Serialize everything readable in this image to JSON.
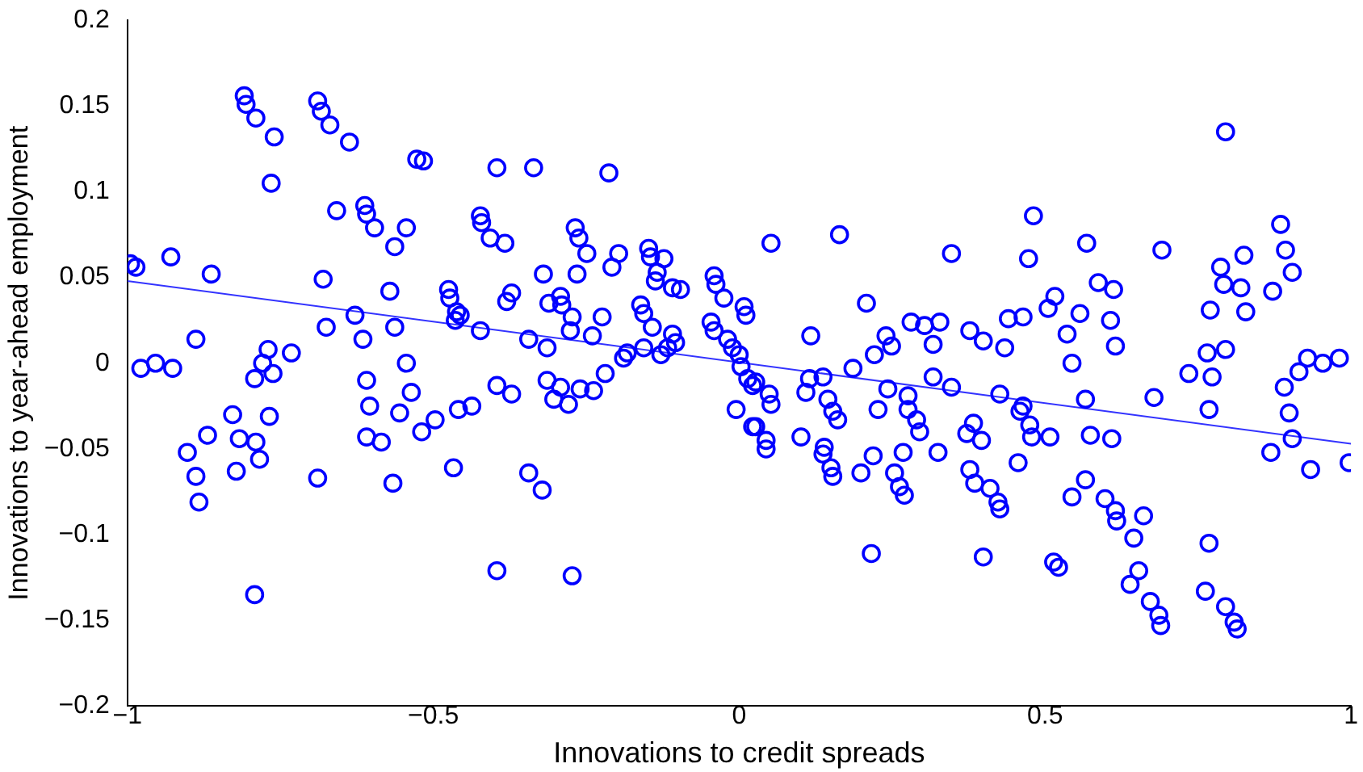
{
  "chart_data": {
    "type": "scatter",
    "xlabel": "Innovations to credit spreads",
    "ylabel": "Innovations to year-ahead employment",
    "xlim": [
      -1,
      1
    ],
    "xticks": [
      -1,
      -0.5,
      0,
      0.5,
      1
    ],
    "ylim": [
      -0.2,
      0.2
    ],
    "yticks": [
      -0.2,
      -0.15,
      -0.1,
      -0.05,
      0,
      0.05,
      0.1,
      0.15,
      0.2
    ],
    "grid": false,
    "legend": false,
    "series": [
      {
        "color": "#0000ff",
        "marker": "circle",
        "x": [
          -0.995,
          -0.986,
          -0.929,
          -0.863,
          -0.978,
          -0.954,
          -0.926,
          -0.888,
          -0.902,
          -0.888,
          -0.883,
          -0.869,
          -0.828,
          -0.822,
          -0.817,
          -0.79,
          -0.784,
          -0.768,
          -0.809,
          -0.806,
          -0.79,
          -0.76,
          -0.765,
          -0.792,
          -0.779,
          -0.77,
          -0.762,
          -0.732,
          -0.792,
          -0.689,
          -0.683,
          -0.669,
          -0.637,
          -0.68,
          -0.675,
          -0.689,
          -0.658,
          -0.612,
          -0.609,
          -0.596,
          -0.563,
          -0.628,
          -0.615,
          -0.563,
          -0.571,
          -0.609,
          -0.604,
          -0.609,
          -0.585,
          -0.566,
          -0.544,
          -0.536,
          -0.555,
          -0.519,
          -0.544,
          -0.527,
          -0.516,
          -0.396,
          -0.336,
          -0.213,
          -0.423,
          -0.421,
          -0.407,
          -0.383,
          -0.268,
          -0.262,
          -0.249,
          -0.32,
          -0.265,
          -0.197,
          -0.208,
          -0.148,
          -0.145,
          -0.123,
          -0.134,
          -0.137,
          -0.109,
          -0.096,
          -0.041,
          -0.038,
          -0.025,
          0.008,
          0.011,
          -0.475,
          -0.473,
          -0.462,
          -0.456,
          -0.464,
          -0.423,
          -0.372,
          -0.38,
          -0.311,
          -0.292,
          -0.29,
          -0.273,
          -0.224,
          -0.276,
          -0.24,
          -0.161,
          -0.156,
          -0.142,
          -0.109,
          -0.104,
          -0.117,
          -0.128,
          -0.156,
          -0.183,
          -0.189,
          -0.344,
          -0.314,
          -0.219,
          -0.046,
          -0.041,
          -0.019,
          -0.011,
          0.0,
          0.003,
          0.014,
          0.022,
          -0.396,
          -0.372,
          -0.314,
          -0.292,
          -0.303,
          -0.279,
          -0.26,
          -0.238,
          -0.497,
          -0.459,
          -0.437,
          -0.005,
          0.022,
          -0.467,
          -0.344,
          -0.322,
          -0.396,
          -0.273,
          0.052,
          0.164,
          0.481,
          0.347,
          0.473,
          0.208,
          0.516,
          0.505,
          0.44,
          0.464,
          0.117,
          0.24,
          0.281,
          0.303,
          0.328,
          0.249,
          0.221,
          0.317,
          0.377,
          0.399,
          0.434,
          0.115,
          0.137,
          0.186,
          0.109,
          0.145,
          0.153,
          0.161,
          0.027,
          0.049,
          0.052,
          0.027,
          0.044,
          0.044,
          0.243,
          0.227,
          0.276,
          0.276,
          0.29,
          0.295,
          0.317,
          0.347,
          0.426,
          0.383,
          0.372,
          0.396,
          0.464,
          0.459,
          0.475,
          0.478,
          0.508,
          0.101,
          0.139,
          0.137,
          0.219,
          0.268,
          0.325,
          0.456,
          0.15,
          0.153,
          0.199,
          0.254,
          0.262,
          0.27,
          0.377,
          0.385,
          0.41,
          0.423,
          0.426,
          0.216,
          0.399,
          0.514,
          0.522,
          0.795,
          0.885,
          0.893,
          0.904,
          0.872,
          0.568,
          0.691,
          0.587,
          0.612,
          0.787,
          0.825,
          0.792,
          0.82,
          0.77,
          0.828,
          0.557,
          0.607,
          0.536,
          0.615,
          0.544,
          0.765,
          0.795,
          0.735,
          0.773,
          0.929,
          0.954,
          0.981,
          0.915,
          0.891,
          0.566,
          0.678,
          0.768,
          0.899,
          0.904,
          0.869,
          0.934,
          0.997,
          0.574,
          0.609,
          0.566,
          0.544,
          0.598,
          0.615,
          0.617,
          0.661,
          0.645,
          0.768,
          0.653,
          0.639,
          0.672,
          0.686,
          0.689,
          0.762,
          0.795,
          0.809,
          0.814
        ],
        "values": [
          0.058,
          0.056,
          0.062,
          0.052,
          -0.003,
          0.0,
          -0.003,
          0.014,
          -0.052,
          -0.066,
          -0.081,
          -0.042,
          -0.03,
          -0.063,
          -0.044,
          -0.046,
          -0.056,
          -0.031,
          0.156,
          0.151,
          0.143,
          0.132,
          0.105,
          -0.009,
          0.0,
          0.008,
          -0.006,
          0.006,
          -0.135,
          0.153,
          0.147,
          0.139,
          0.129,
          0.049,
          0.021,
          -0.067,
          0.089,
          0.092,
          0.087,
          0.079,
          0.068,
          0.028,
          0.014,
          0.021,
          0.042,
          -0.01,
          -0.025,
          -0.043,
          -0.046,
          -0.07,
          0.0,
          -0.017,
          -0.029,
          -0.04,
          0.079,
          0.119,
          0.118,
          0.114,
          0.114,
          0.111,
          0.086,
          0.082,
          0.073,
          0.07,
          0.079,
          0.073,
          0.064,
          0.052,
          0.052,
          0.064,
          0.056,
          0.067,
          0.062,
          0.061,
          0.053,
          0.048,
          0.044,
          0.043,
          0.051,
          0.046,
          0.038,
          0.033,
          0.028,
          0.043,
          0.038,
          0.03,
          0.028,
          0.025,
          0.019,
          0.041,
          0.036,
          0.035,
          0.039,
          0.034,
          0.027,
          0.027,
          0.019,
          0.016,
          0.034,
          0.029,
          0.021,
          0.017,
          0.012,
          0.009,
          0.005,
          0.009,
          0.006,
          0.003,
          0.014,
          0.009,
          -0.006,
          0.024,
          0.019,
          0.014,
          0.009,
          0.005,
          -0.002,
          -0.009,
          -0.013,
          -0.013,
          -0.018,
          -0.01,
          -0.014,
          -0.021,
          -0.024,
          -0.015,
          -0.016,
          -0.033,
          -0.027,
          -0.025,
          -0.027,
          -0.037,
          -0.061,
          -0.064,
          -0.074,
          -0.121,
          -0.124,
          0.07,
          0.075,
          0.086,
          0.064,
          0.061,
          0.035,
          0.039,
          0.032,
          0.026,
          0.027,
          0.016,
          0.016,
          0.024,
          0.022,
          0.024,
          0.01,
          0.005,
          0.011,
          0.019,
          0.013,
          0.009,
          -0.009,
          -0.008,
          -0.003,
          -0.017,
          -0.021,
          -0.028,
          -0.033,
          -0.011,
          -0.018,
          -0.024,
          -0.037,
          -0.045,
          -0.05,
          -0.015,
          -0.027,
          -0.019,
          -0.027,
          -0.033,
          -0.04,
          -0.008,
          -0.014,
          -0.018,
          -0.035,
          -0.041,
          -0.045,
          -0.025,
          -0.028,
          -0.036,
          -0.043,
          -0.043,
          -0.043,
          -0.049,
          -0.053,
          -0.054,
          -0.052,
          -0.052,
          -0.058,
          -0.061,
          -0.066,
          -0.064,
          -0.064,
          -0.072,
          -0.077,
          -0.062,
          -0.07,
          -0.073,
          -0.081,
          -0.085,
          -0.111,
          -0.113,
          -0.116,
          -0.119,
          0.135,
          0.081,
          0.066,
          0.053,
          0.042,
          0.07,
          0.066,
          0.047,
          0.043,
          0.056,
          0.063,
          0.046,
          0.044,
          0.031,
          0.03,
          0.029,
          0.025,
          0.017,
          0.01,
          0.0,
          0.006,
          0.008,
          -0.006,
          -0.008,
          0.003,
          0.0,
          0.003,
          -0.005,
          -0.014,
          -0.021,
          -0.02,
          -0.027,
          -0.029,
          -0.044,
          -0.052,
          -0.062,
          -0.058,
          -0.042,
          -0.044,
          -0.068,
          -0.078,
          -0.079,
          -0.086,
          -0.092,
          -0.089,
          -0.102,
          -0.105,
          -0.121,
          -0.129,
          -0.139,
          -0.147,
          -0.153,
          -0.133,
          -0.142,
          -0.151,
          -0.155
        ]
      },
      {
        "type": "line",
        "marker": "none",
        "color": "#3333ff",
        "x": [
          -1,
          1
        ],
        "values": [
          0.048,
          -0.047
        ]
      }
    ]
  }
}
